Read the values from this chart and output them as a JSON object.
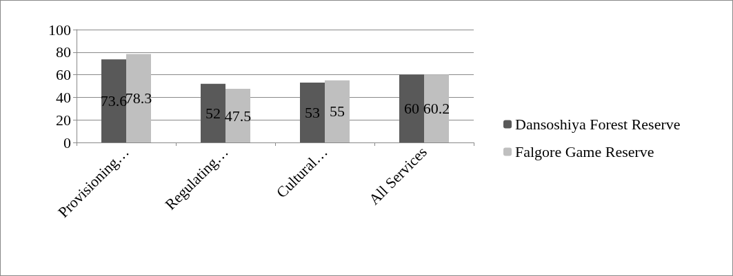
{
  "chart_data": {
    "type": "bar",
    "categories": [
      "Provisioning…",
      "Regulating…",
      "Cultural…",
      "All Services"
    ],
    "series": [
      {
        "name": "Dansoshiya Forest Reserve",
        "color": "#595959",
        "values": [
          73.6,
          52,
          53,
          60
        ]
      },
      {
        "name": "Falgore Game Reserve",
        "color": "#bfbfbf",
        "values": [
          78.3,
          47.5,
          55,
          60.2
        ]
      }
    ],
    "ylim": [
      0,
      100
    ],
    "yticks": [
      0,
      20,
      40,
      60,
      80,
      100
    ],
    "grid": "y",
    "legend": "right",
    "data_labels": true
  }
}
